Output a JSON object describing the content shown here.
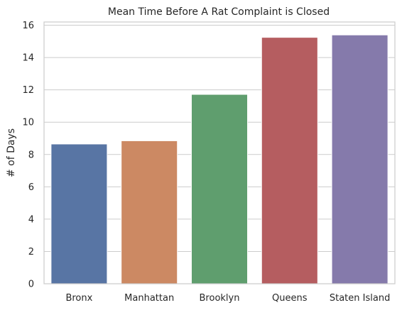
{
  "chart_data": {
    "type": "bar",
    "title": "Mean Time Before A Rat Complaint is Closed",
    "xlabel": "",
    "ylabel": "# of Days",
    "categories": [
      "Bronx",
      "Manhattan",
      "Brooklyn",
      "Queens",
      "Staten Island"
    ],
    "values": [
      8.65,
      8.85,
      11.72,
      15.25,
      15.4
    ],
    "colors": [
      "#5875a4",
      "#cc8963",
      "#5f9e6e",
      "#b55d60",
      "#857aab"
    ],
    "ylim": [
      0,
      16.2
    ],
    "yticks": [
      0,
      2,
      4,
      6,
      8,
      10,
      12,
      14,
      16
    ],
    "grid": true,
    "legend": "none"
  }
}
